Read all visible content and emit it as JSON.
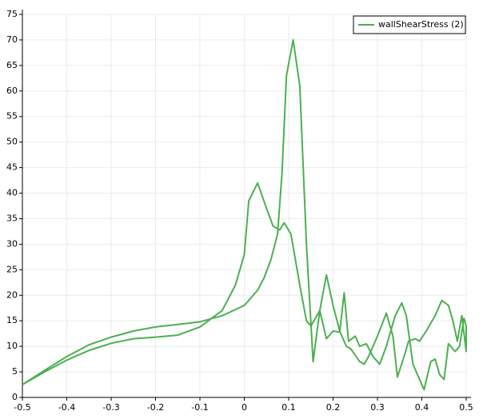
{
  "chart_data": {
    "type": "line",
    "series": [
      {
        "name": "wallShearStress (2)",
        "color": "#4caf50",
        "x": [
          -0.5,
          -0.45,
          -0.4,
          -0.35,
          -0.3,
          -0.25,
          -0.2,
          -0.15,
          -0.1,
          -0.05,
          -0.02,
          0,
          0.01,
          0.03,
          0.05,
          0.065,
          0.08,
          0.09,
          0.105,
          0.125,
          0.14,
          0.15,
          0.17,
          0.185,
          0.2,
          0.215,
          0.23,
          0.24,
          0.26,
          0.27,
          0.28,
          0.3,
          0.32,
          0.335,
          0.345,
          0.36,
          0.37,
          0.385,
          0.395,
          0.41,
          0.43,
          0.445,
          0.46,
          0.47,
          0.48,
          0.49,
          0.5,
          0.5,
          0.495,
          0.485,
          0.475,
          0.46,
          0.45,
          0.44,
          0.43,
          0.42,
          0.405,
          0.39,
          0.38,
          0.365,
          0.355,
          0.34,
          0.32,
          0.305,
          0.29,
          0.275,
          0.26,
          0.25,
          0.235,
          0.225,
          0.215,
          0.2,
          0.185,
          0.17,
          0.155,
          0.14,
          0.125,
          0.11,
          0.095,
          0.085,
          0.075,
          0.06,
          0.045,
          0.03,
          0,
          -0.05,
          -0.1,
          -0.15,
          -0.2,
          -0.25,
          -0.3,
          -0.35,
          -0.4,
          -0.45,
          -0.5
        ],
        "values": [
          2.5,
          5,
          7.3,
          9.2,
          10.6,
          11.5,
          11.8,
          12.2,
          13.8,
          17,
          22,
          28,
          38.5,
          42,
          37,
          33.5,
          32.8,
          34.2,
          32,
          22,
          15,
          14,
          17,
          24,
          18,
          13,
          10,
          9.5,
          7,
          6.5,
          8,
          12,
          16.5,
          12,
          4,
          8,
          11,
          11.5,
          11,
          13,
          16,
          19,
          18,
          15,
          11,
          16,
          9,
          14,
          15.5,
          10,
          9,
          10.5,
          3.5,
          4.5,
          7.5,
          7,
          1.5,
          4.5,
          6.5,
          16,
          18.5,
          16,
          10,
          6.5,
          8,
          10.5,
          10,
          12,
          11,
          20.5,
          12.8,
          13,
          11.5,
          17,
          7,
          30,
          61,
          70,
          63,
          44,
          32,
          27,
          23.5,
          21,
          18,
          16,
          14.8,
          14.3,
          13.8,
          13,
          11.8,
          10.3,
          8,
          5.3,
          2.5
        ]
      }
    ],
    "xlim": [
      -0.5,
      0.5
    ],
    "xticks": [
      -0.5,
      -0.4,
      -0.3,
      -0.2,
      -0.1,
      0,
      0.1,
      0.2,
      0.3,
      0.4,
      0.5
    ],
    "ylim": [
      0,
      75
    ],
    "yticks": [
      0,
      5,
      10,
      15,
      20,
      25,
      30,
      35,
      40,
      45,
      50,
      55,
      60,
      65,
      70,
      75
    ],
    "grid": true,
    "legend": "top-right"
  }
}
